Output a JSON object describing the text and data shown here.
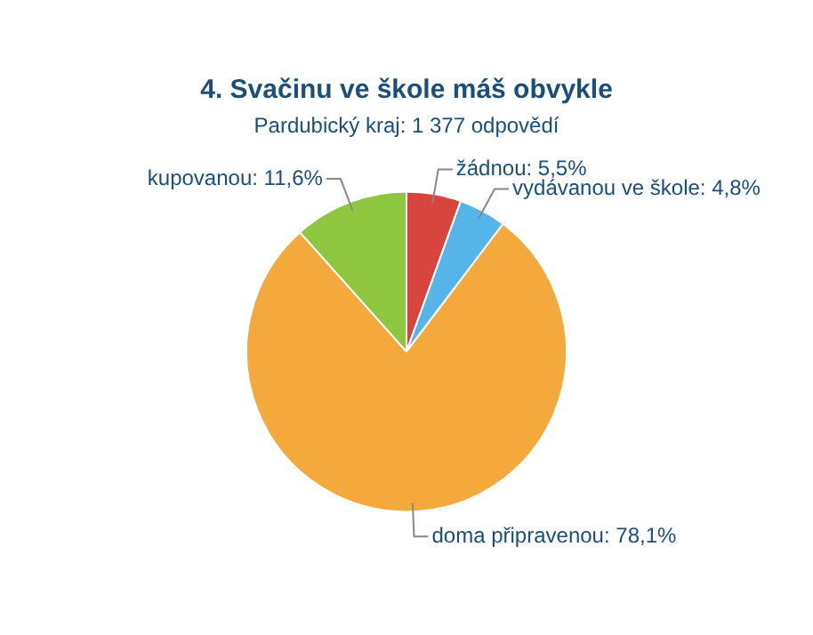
{
  "chart_data": {
    "type": "pie",
    "title": "4. Svačinu ve škole máš obvykle",
    "subtitle": "Pardubický kraj: 1 377 odpovědí",
    "categories": [
      "žádnou",
      "vydávanou ve škole",
      "doma připravenou",
      "kupovanou"
    ],
    "values": [
      5.5,
      4.8,
      78.1,
      11.6
    ],
    "value_labels": [
      "5,5%",
      "4,8%",
      "78,1%",
      "11,6%"
    ],
    "colors": [
      "#d8453e",
      "#55b4e8",
      "#f5a83c",
      "#8ec63f"
    ],
    "legend": false
  }
}
